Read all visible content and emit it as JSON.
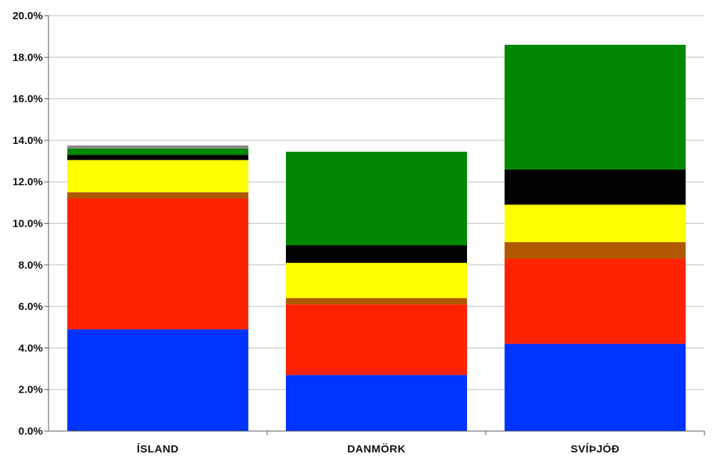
{
  "chart_data": {
    "type": "bar",
    "stacked": true,
    "categories": [
      "ÍSLAND",
      "DANMÖRK",
      "SVÍÞJÓÐ"
    ],
    "ylim": [
      0,
      20
    ],
    "yticks": [
      "0.0%",
      "2.0%",
      "4.0%",
      "6.0%",
      "8.0%",
      "10.0%",
      "12.0%",
      "14.0%",
      "16.0%",
      "18.0%",
      "20.0%"
    ],
    "grid": true,
    "legend": "none",
    "series": [
      {
        "color": "#0033ff",
        "values": [
          4.9,
          2.7,
          4.2
        ]
      },
      {
        "color": "#ff2200",
        "values": [
          6.3,
          3.4,
          4.1
        ]
      },
      {
        "color": "#b05800",
        "values": [
          0.3,
          0.3,
          0.8
        ]
      },
      {
        "color": "#ffff00",
        "values": [
          1.55,
          1.7,
          1.8
        ]
      },
      {
        "color": "#000000",
        "values": [
          0.25,
          0.85,
          1.7
        ]
      },
      {
        "color": "#008800",
        "values": [
          0.3,
          4.5,
          6.0
        ]
      },
      {
        "color": "#888888",
        "values": [
          0.15,
          0.0,
          0.0
        ]
      }
    ]
  }
}
